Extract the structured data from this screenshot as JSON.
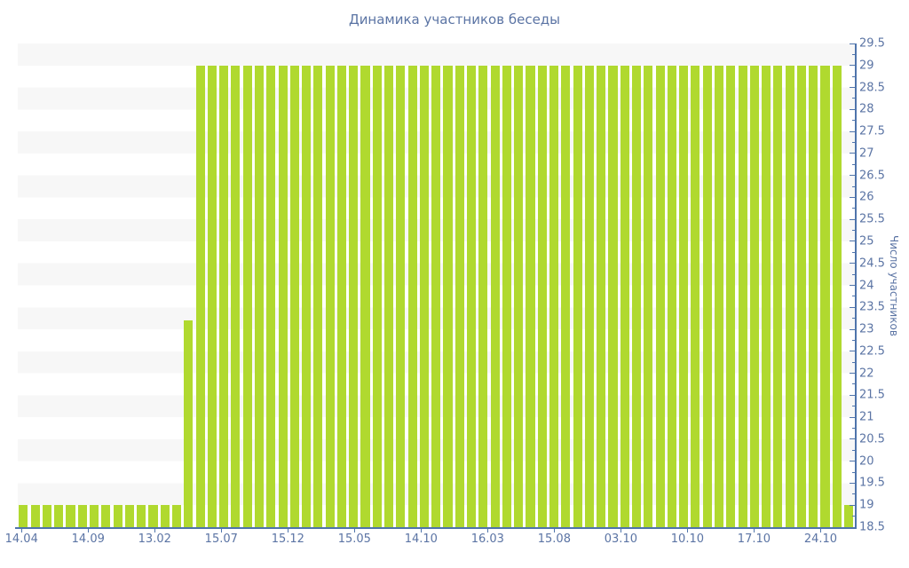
{
  "chart_data": {
    "type": "bar",
    "title": "Динамика участников беседы",
    "xlabel": "",
    "ylabel": "Число участников",
    "ylim": [
      18.5,
      29.5
    ],
    "y_tick_step": 0.5,
    "y_minor_tick_step": 0.25,
    "axis_position": "right",
    "legend": "none",
    "grid": "horizontal-half-unit-bands",
    "x_tick_labels": [
      "14.04",
      "14.09",
      "13.02",
      "15.07",
      "15.12",
      "15.05",
      "14.10",
      "16.03",
      "15.08",
      "03.10",
      "10.10",
      "17.10",
      "24.10"
    ],
    "values": [
      19,
      19,
      19,
      19,
      19,
      19,
      19,
      19,
      19,
      19,
      19,
      19,
      19,
      19,
      23.2,
      29,
      29,
      29,
      29,
      29,
      29,
      29,
      29,
      29,
      29,
      29,
      29,
      29,
      29,
      29,
      29,
      29,
      29,
      29,
      29,
      29,
      29,
      29,
      29,
      29,
      29,
      29,
      29,
      29,
      29,
      29,
      29,
      29,
      29,
      29,
      29,
      29,
      29,
      29,
      29,
      29,
      29,
      29,
      29,
      29,
      29,
      29,
      29,
      29,
      29,
      29,
      29,
      29,
      29,
      29,
      19
    ],
    "colors": {
      "bar": "#b0d92f",
      "axis": "#4f74ab",
      "label": "#5b74a4",
      "band": "#f7f7f7",
      "background": "#ffffff"
    }
  }
}
